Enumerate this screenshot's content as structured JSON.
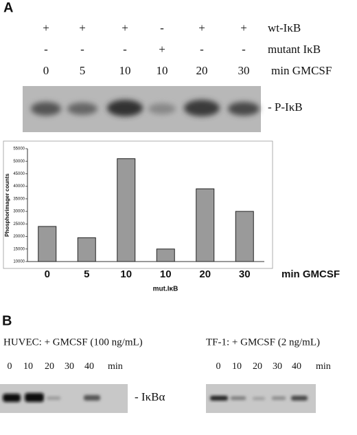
{
  "panel_a": {
    "letter": "A",
    "rows": [
      {
        "marks": [
          "+",
          "+",
          "+",
          "-",
          "+",
          "+"
        ],
        "label": "wt-IκB"
      },
      {
        "marks": [
          "-",
          "-",
          "-",
          "+",
          "-",
          "-"
        ],
        "label": "mutant IκB"
      },
      {
        "marks": [
          "0",
          "5",
          "10",
          "10",
          "20",
          "30"
        ],
        "label": "min  GMCSF"
      }
    ],
    "blot_label": "- P-IκB"
  },
  "chart_data": {
    "type": "bar",
    "y_label": "Phosphorimager counts",
    "x_label": "min GMCSF",
    "annotation": "mut.IκB",
    "categories": [
      "0",
      "5",
      "10",
      "10",
      "20",
      "30"
    ],
    "values": [
      24000,
      19500,
      51000,
      15000,
      39000,
      30000
    ],
    "color": "#9a9a9a",
    "ylim": [
      10000,
      55000
    ],
    "yticks": [
      10000,
      15000,
      20000,
      25000,
      30000,
      35000,
      40000,
      45000,
      50000,
      55000
    ]
  },
  "panel_b": {
    "letter": "B",
    "left": {
      "title": "HUVEC: + GMCSF (100 ng/mL)",
      "times": [
        "0",
        "10",
        "20",
        "30",
        "40"
      ],
      "unit": "min"
    },
    "right": {
      "title": "TF-1: + GMCSF (2 ng/mL)",
      "times": [
        "0",
        "10",
        "20",
        "30",
        "40"
      ],
      "unit": "min"
    },
    "blot_label": "- IκBα"
  }
}
